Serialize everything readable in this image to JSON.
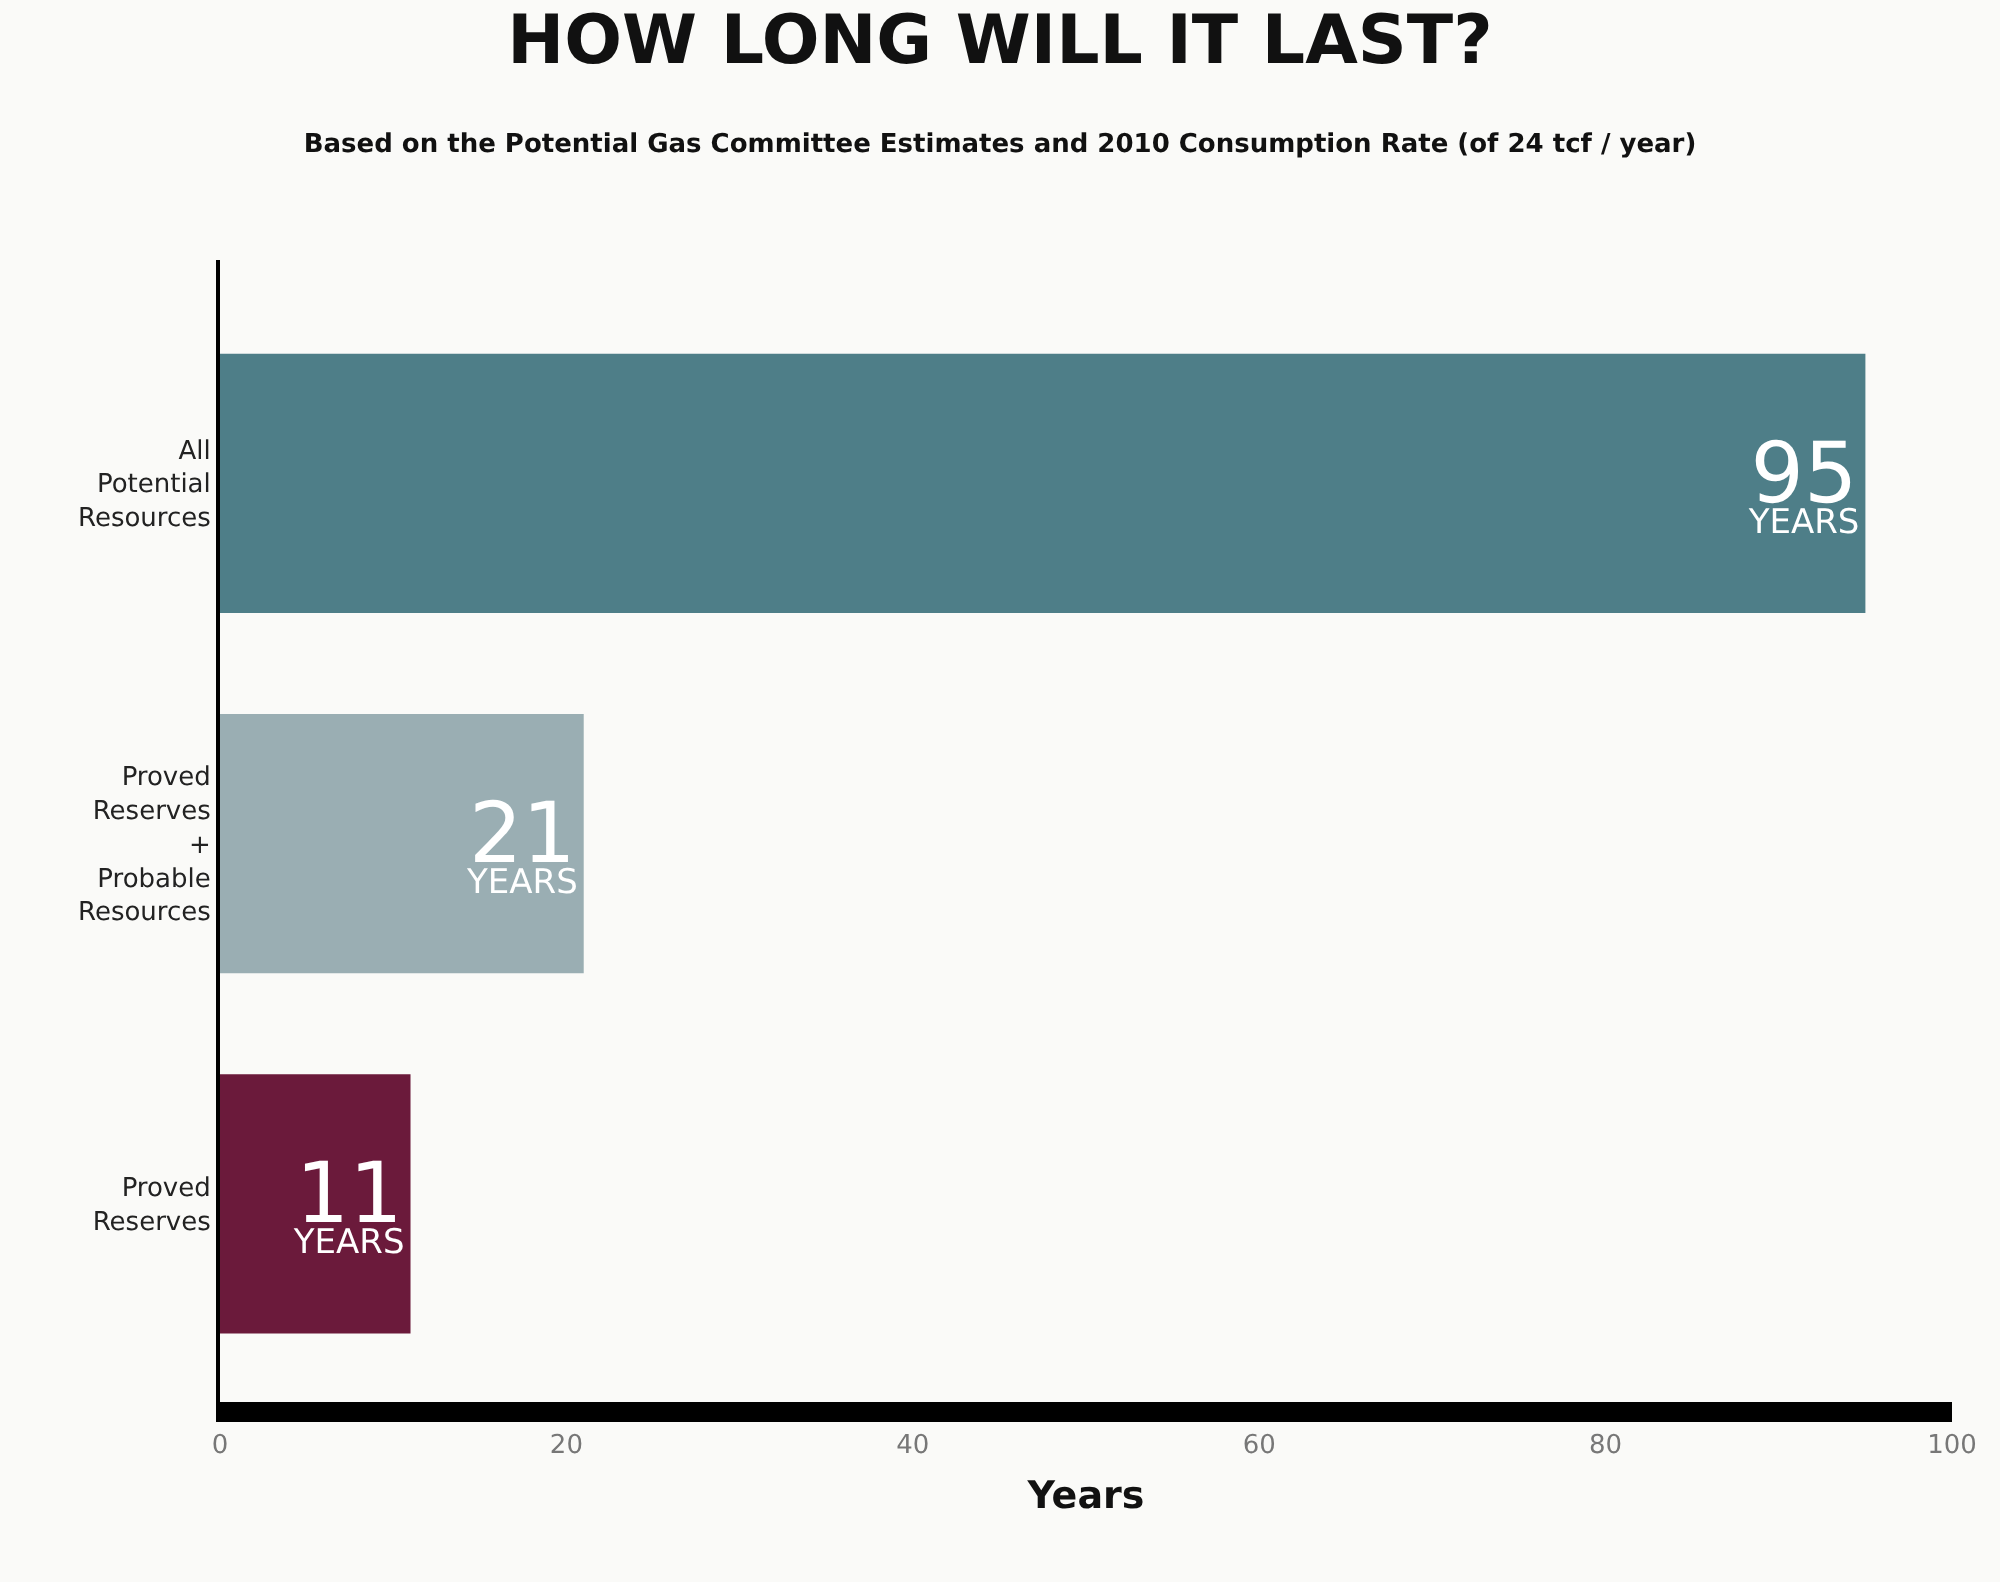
{
  "chart_data": {
    "type": "bar",
    "orientation": "horizontal",
    "title": "HOW LONG WILL IT LAST?",
    "subtitle": "Based on the Potential Gas Committee Estimates and 2010 Consumption Rate (of 24 tcf / year)",
    "xlabel": "Years",
    "categories": [
      "All\nPotential\nResources",
      "Proved\nReserves\n+\nProbable\nResources",
      "Proved\nReserves"
    ],
    "values": [
      95,
      21,
      11
    ],
    "colors": [
      "#4e7e88",
      "#9aaeb3",
      "#6b1a3b"
    ],
    "value_labels": [
      "95\nYEARS",
      "21\nYEARS",
      "11\nYEARS"
    ],
    "xlim": [
      0,
      100
    ],
    "xticks": [
      0,
      20,
      40,
      60,
      80,
      100
    ],
    "grid": false,
    "legend": false
  }
}
